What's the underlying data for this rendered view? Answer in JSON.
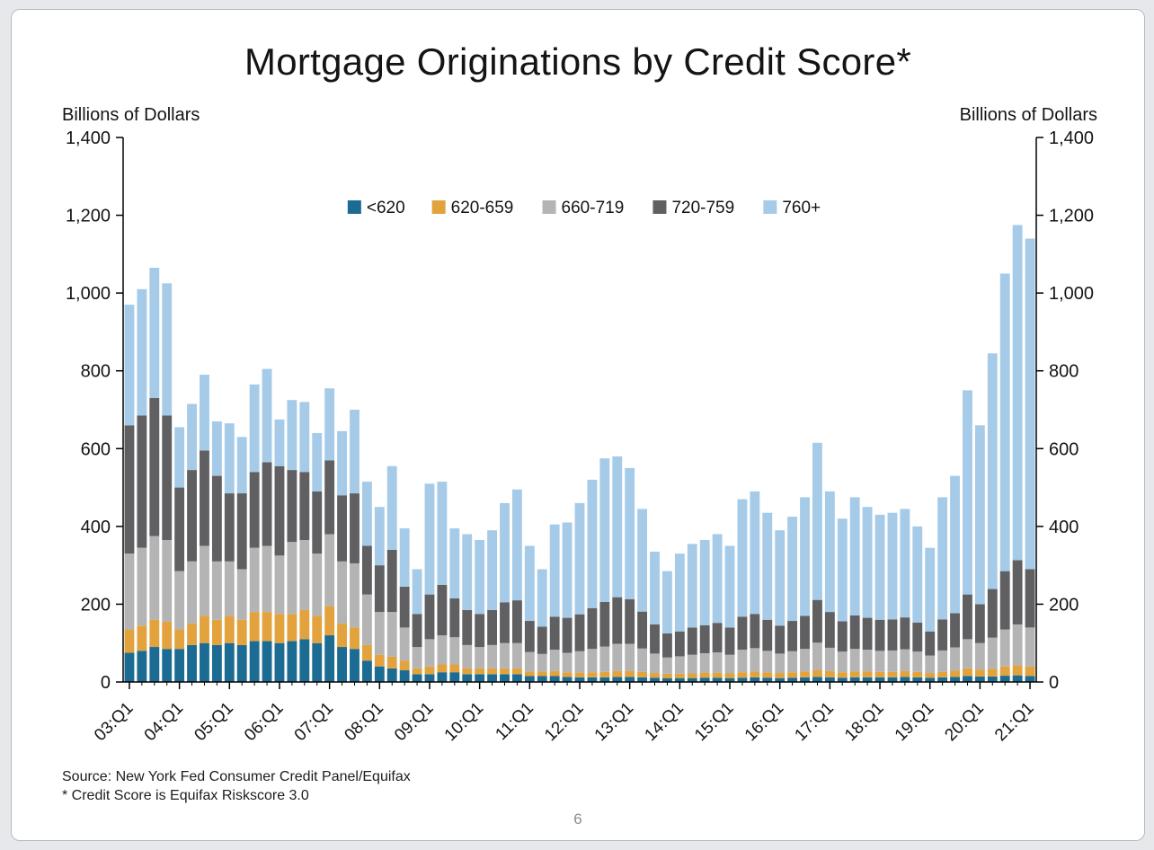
{
  "page": {
    "title": "Mortgage Originations by Credit Score*",
    "y_axis_label_left": "Billions of Dollars",
    "y_axis_label_right": "Billions of Dollars",
    "source_line1": "Source: New York Fed Consumer Credit Panel/Equifax",
    "source_line2": "* Credit Score is Equifax Riskscore 3.0",
    "page_number": "6"
  },
  "chart_data": {
    "type": "bar",
    "stacked": true,
    "title": "Mortgage Originations by Credit Score*",
    "ylabel": "Billions of Dollars",
    "ylim": [
      0,
      1400
    ],
    "ytick_interval": 200,
    "y_tick_labels": [
      "0",
      "200",
      "400",
      "600",
      "800",
      "1,000",
      "1,200",
      "1,400"
    ],
    "grid": false,
    "legend_position": "top-center-inside",
    "x_tick_labels": [
      "03:Q1",
      "04:Q1",
      "05:Q1",
      "06:Q1",
      "07:Q1",
      "08:Q1",
      "09:Q1",
      "10:Q1",
      "11:Q1",
      "12:Q1",
      "13:Q1",
      "14:Q1",
      "15:Q1",
      "16:Q1",
      "17:Q1",
      "18:Q1",
      "19:Q1",
      "20:Q1",
      "21:Q1"
    ],
    "quarters": [
      "03:Q1",
      "03:Q2",
      "03:Q3",
      "03:Q4",
      "04:Q1",
      "04:Q2",
      "04:Q3",
      "04:Q4",
      "05:Q1",
      "05:Q2",
      "05:Q3",
      "05:Q4",
      "06:Q1",
      "06:Q2",
      "06:Q3",
      "06:Q4",
      "07:Q1",
      "07:Q2",
      "07:Q3",
      "07:Q4",
      "08:Q1",
      "08:Q2",
      "08:Q3",
      "08:Q4",
      "09:Q1",
      "09:Q2",
      "09:Q3",
      "09:Q4",
      "10:Q1",
      "10:Q2",
      "10:Q3",
      "10:Q4",
      "11:Q1",
      "11:Q2",
      "11:Q3",
      "11:Q4",
      "12:Q1",
      "12:Q2",
      "12:Q3",
      "12:Q4",
      "13:Q1",
      "13:Q2",
      "13:Q3",
      "13:Q4",
      "14:Q1",
      "14:Q2",
      "14:Q3",
      "14:Q4",
      "15:Q1",
      "15:Q2",
      "15:Q3",
      "15:Q4",
      "16:Q1",
      "16:Q2",
      "16:Q3",
      "16:Q4",
      "17:Q1",
      "17:Q2",
      "17:Q3",
      "17:Q4",
      "18:Q1",
      "18:Q2",
      "18:Q3",
      "18:Q4",
      "19:Q1",
      "19:Q2",
      "19:Q3",
      "19:Q4",
      "20:Q1",
      "20:Q2",
      "20:Q3",
      "20:Q4",
      "21:Q1"
    ],
    "series": [
      {
        "name": "<620",
        "color": "#1c6b92",
        "values": [
          75,
          80,
          90,
          85,
          85,
          95,
          100,
          95,
          100,
          95,
          105,
          105,
          100,
          105,
          110,
          100,
          120,
          90,
          85,
          55,
          40,
          35,
          30,
          20,
          20,
          25,
          25,
          20,
          20,
          20,
          20,
          20,
          15,
          15,
          15,
          13,
          12,
          12,
          12,
          13,
          13,
          12,
          11,
          10,
          10,
          10,
          11,
          11,
          10,
          11,
          12,
          11,
          10,
          11,
          12,
          13,
          12,
          11,
          12,
          12,
          12,
          12,
          13,
          12,
          11,
          12,
          13,
          15,
          14,
          14,
          16,
          17,
          15
        ]
      },
      {
        "name": "620-659",
        "color": "#e2a33e",
        "values": [
          60,
          65,
          70,
          70,
          50,
          55,
          70,
          65,
          70,
          65,
          75,
          75,
          75,
          70,
          75,
          70,
          75,
          60,
          55,
          40,
          30,
          30,
          25,
          15,
          20,
          20,
          20,
          15,
          15,
          15,
          15,
          15,
          12,
          12,
          13,
          12,
          12,
          13,
          14,
          15,
          15,
          14,
          12,
          11,
          11,
          12,
          13,
          13,
          12,
          14,
          15,
          14,
          13,
          14,
          15,
          18,
          16,
          14,
          15,
          15,
          14,
          14,
          15,
          14,
          12,
          14,
          16,
          20,
          18,
          20,
          24,
          26,
          25
        ]
      },
      {
        "name": "660-719",
        "color": "#b4b4b4",
        "values": [
          195,
          200,
          215,
          210,
          150,
          160,
          180,
          150,
          140,
          130,
          165,
          170,
          150,
          185,
          180,
          160,
          185,
          160,
          165,
          130,
          110,
          115,
          85,
          55,
          70,
          75,
          70,
          60,
          55,
          60,
          65,
          65,
          50,
          45,
          55,
          50,
          55,
          60,
          65,
          70,
          70,
          60,
          50,
          42,
          45,
          48,
          50,
          52,
          48,
          58,
          60,
          55,
          50,
          54,
          58,
          70,
          60,
          53,
          58,
          56,
          54,
          55,
          56,
          52,
          45,
          55,
          60,
          75,
          68,
          80,
          95,
          105,
          100
        ]
      },
      {
        "name": "720-759",
        "color": "#606063",
        "values": [
          330,
          340,
          355,
          320,
          215,
          235,
          245,
          220,
          175,
          195,
          195,
          215,
          230,
          185,
          175,
          160,
          190,
          170,
          180,
          125,
          120,
          160,
          105,
          85,
          115,
          130,
          100,
          90,
          85,
          90,
          105,
          110,
          80,
          70,
          85,
          90,
          95,
          105,
          115,
          120,
          115,
          95,
          75,
          62,
          64,
          70,
          72,
          76,
          70,
          85,
          88,
          80,
          72,
          78,
          85,
          110,
          92,
          78,
          86,
          82,
          80,
          80,
          82,
          75,
          62,
          80,
          88,
          115,
          100,
          125,
          150,
          165,
          150
        ]
      },
      {
        "name": "760+",
        "color": "#a6cbe8",
        "values": [
          310,
          325,
          335,
          340,
          155,
          170,
          195,
          140,
          180,
          145,
          225,
          240,
          120,
          180,
          180,
          150,
          185,
          165,
          215,
          165,
          150,
          215,
          150,
          115,
          285,
          265,
          180,
          195,
          190,
          205,
          255,
          285,
          193,
          148,
          237,
          245,
          286,
          330,
          369,
          362,
          337,
          264,
          187,
          160,
          200,
          215,
          219,
          228,
          210,
          302,
          315,
          275,
          245,
          268,
          305,
          404,
          310,
          264,
          304,
          285,
          270,
          274,
          279,
          247,
          215,
          314,
          353,
          525,
          460,
          606,
          765,
          862,
          850
        ]
      }
    ]
  }
}
